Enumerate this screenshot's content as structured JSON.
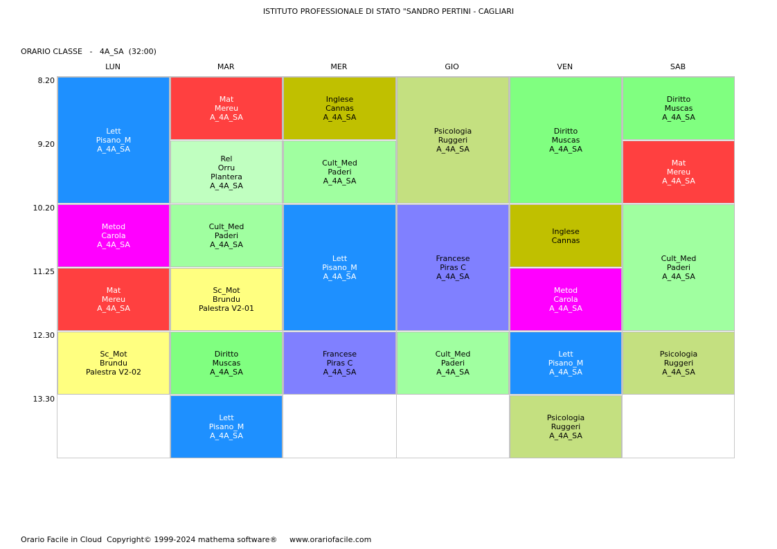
{
  "header": {
    "title": "ISTITUTO PROFESSIONALE DI STATO \"SANDRO PERTINI - CAGLIARI",
    "class_label": "ORARIO CLASSE",
    "class_sep": "-",
    "class_name": "4A_SA",
    "class_hours": "(32:00)"
  },
  "days": [
    "LUN",
    "MAR",
    "MER",
    "GIO",
    "VEN",
    "SAB"
  ],
  "times": [
    "8.20",
    "9.20",
    "10.20",
    "11.25",
    "12.30",
    "13.30"
  ],
  "colors": {
    "Lett": "#1E90FF",
    "Mat": "#FF4040",
    "Rel": "#C0FFC0",
    "Inglese": "#C0C000",
    "Cult_Med": "#A0FFA0",
    "Psicologia": "#C4E080",
    "Diritto": "#80FF80",
    "Metod": "#FF00FF",
    "Sc_Mot": "#FFFF80",
    "Francese": "#8080FF"
  },
  "lessons": [
    {
      "day": 0,
      "start": 0,
      "span": 2,
      "color_key": "Lett",
      "lines": [
        "Lett",
        "Pisano_M",
        "A_4A_SA"
      ]
    },
    {
      "day": 0,
      "start": 2,
      "span": 1,
      "color_key": "Metod",
      "lines": [
        "Metod",
        "Carola",
        "A_4A_SA"
      ]
    },
    {
      "day": 0,
      "start": 3,
      "span": 1,
      "color_key": "Mat",
      "lines": [
        "Mat",
        "Mereu",
        "A_4A_SA"
      ]
    },
    {
      "day": 0,
      "start": 4,
      "span": 1,
      "color_key": "Sc_Mot",
      "lines": [
        "Sc_Mot",
        "Brundu",
        "Palestra V2-02"
      ]
    },
    {
      "day": 1,
      "start": 0,
      "span": 1,
      "color_key": "Mat",
      "lines": [
        "Mat",
        "Mereu",
        "A_4A_SA"
      ]
    },
    {
      "day": 1,
      "start": 1,
      "span": 1,
      "color_key": "Rel",
      "lines": [
        "Rel",
        "Orru",
        "Plantera",
        "A_4A_SA"
      ]
    },
    {
      "day": 1,
      "start": 2,
      "span": 1,
      "color_key": "Cult_Med",
      "lines": [
        "Cult_Med",
        "Paderi",
        "A_4A_SA"
      ]
    },
    {
      "day": 1,
      "start": 3,
      "span": 1,
      "color_key": "Sc_Mot",
      "lines": [
        "Sc_Mot",
        "Brundu",
        "Palestra V2-01"
      ]
    },
    {
      "day": 1,
      "start": 4,
      "span": 1,
      "color_key": "Diritto",
      "lines": [
        "Diritto",
        "Muscas",
        "A_4A_SA"
      ]
    },
    {
      "day": 1,
      "start": 5,
      "span": 1,
      "color_key": "Lett",
      "lines": [
        "Lett",
        "Pisano_M",
        "A_4A_SA"
      ]
    },
    {
      "day": 2,
      "start": 0,
      "span": 1,
      "color_key": "Inglese",
      "lines": [
        "Inglese",
        "Cannas",
        "A_4A_SA"
      ]
    },
    {
      "day": 2,
      "start": 1,
      "span": 1,
      "color_key": "Cult_Med",
      "lines": [
        "Cult_Med",
        "Paderi",
        "A_4A_SA"
      ]
    },
    {
      "day": 2,
      "start": 2,
      "span": 2,
      "color_key": "Lett",
      "lines": [
        "Lett",
        "Pisano_M",
        "A_4A_SA"
      ]
    },
    {
      "day": 2,
      "start": 4,
      "span": 1,
      "color_key": "Francese",
      "lines": [
        "Francese",
        "Piras C",
        "A_4A_SA"
      ]
    },
    {
      "day": 3,
      "start": 0,
      "span": 2,
      "color_key": "Psicologia",
      "lines": [
        "Psicologia",
        "Ruggeri",
        "A_4A_SA"
      ]
    },
    {
      "day": 3,
      "start": 2,
      "span": 2,
      "color_key": "Francese",
      "lines": [
        "Francese",
        "Piras C",
        "A_4A_SA"
      ]
    },
    {
      "day": 3,
      "start": 4,
      "span": 1,
      "color_key": "Cult_Med",
      "lines": [
        "Cult_Med",
        "Paderi",
        "A_4A_SA"
      ]
    },
    {
      "day": 4,
      "start": 0,
      "span": 2,
      "color_key": "Diritto",
      "lines": [
        "Diritto",
        "Muscas",
        "A_4A_SA"
      ]
    },
    {
      "day": 4,
      "start": 2,
      "span": 1,
      "color_key": "Inglese",
      "lines": [
        "Inglese",
        "Cannas"
      ]
    },
    {
      "day": 4,
      "start": 3,
      "span": 1,
      "color_key": "Metod",
      "lines": [
        "Metod",
        "Carola",
        "A_4A_SA"
      ]
    },
    {
      "day": 4,
      "start": 4,
      "span": 1,
      "color_key": "Lett",
      "lines": [
        "Lett",
        "Pisano_M",
        "A_4A_SA"
      ]
    },
    {
      "day": 4,
      "start": 5,
      "span": 1,
      "color_key": "Psicologia",
      "lines": [
        "Psicologia",
        "Ruggeri",
        "A_4A_SA"
      ]
    },
    {
      "day": 5,
      "start": 0,
      "span": 1,
      "color_key": "Diritto",
      "lines": [
        "Diritto",
        "Muscas",
        "A_4A_SA"
      ]
    },
    {
      "day": 5,
      "start": 1,
      "span": 1,
      "color_key": "Mat",
      "lines": [
        "Mat",
        "Mereu",
        "A_4A_SA"
      ]
    },
    {
      "day": 5,
      "start": 2,
      "span": 2,
      "color_key": "Cult_Med",
      "lines": [
        "Cult_Med",
        "Paderi",
        "A_4A_SA"
      ]
    },
    {
      "day": 5,
      "start": 4,
      "span": 1,
      "color_key": "Psicologia",
      "lines": [
        "Psicologia",
        "Ruggeri",
        "A_4A_SA"
      ]
    }
  ],
  "footer": {
    "copyright": "Orario Facile in Cloud  Copyright© 1999-2024 mathema software®",
    "website": "www.orariofacile.com"
  }
}
